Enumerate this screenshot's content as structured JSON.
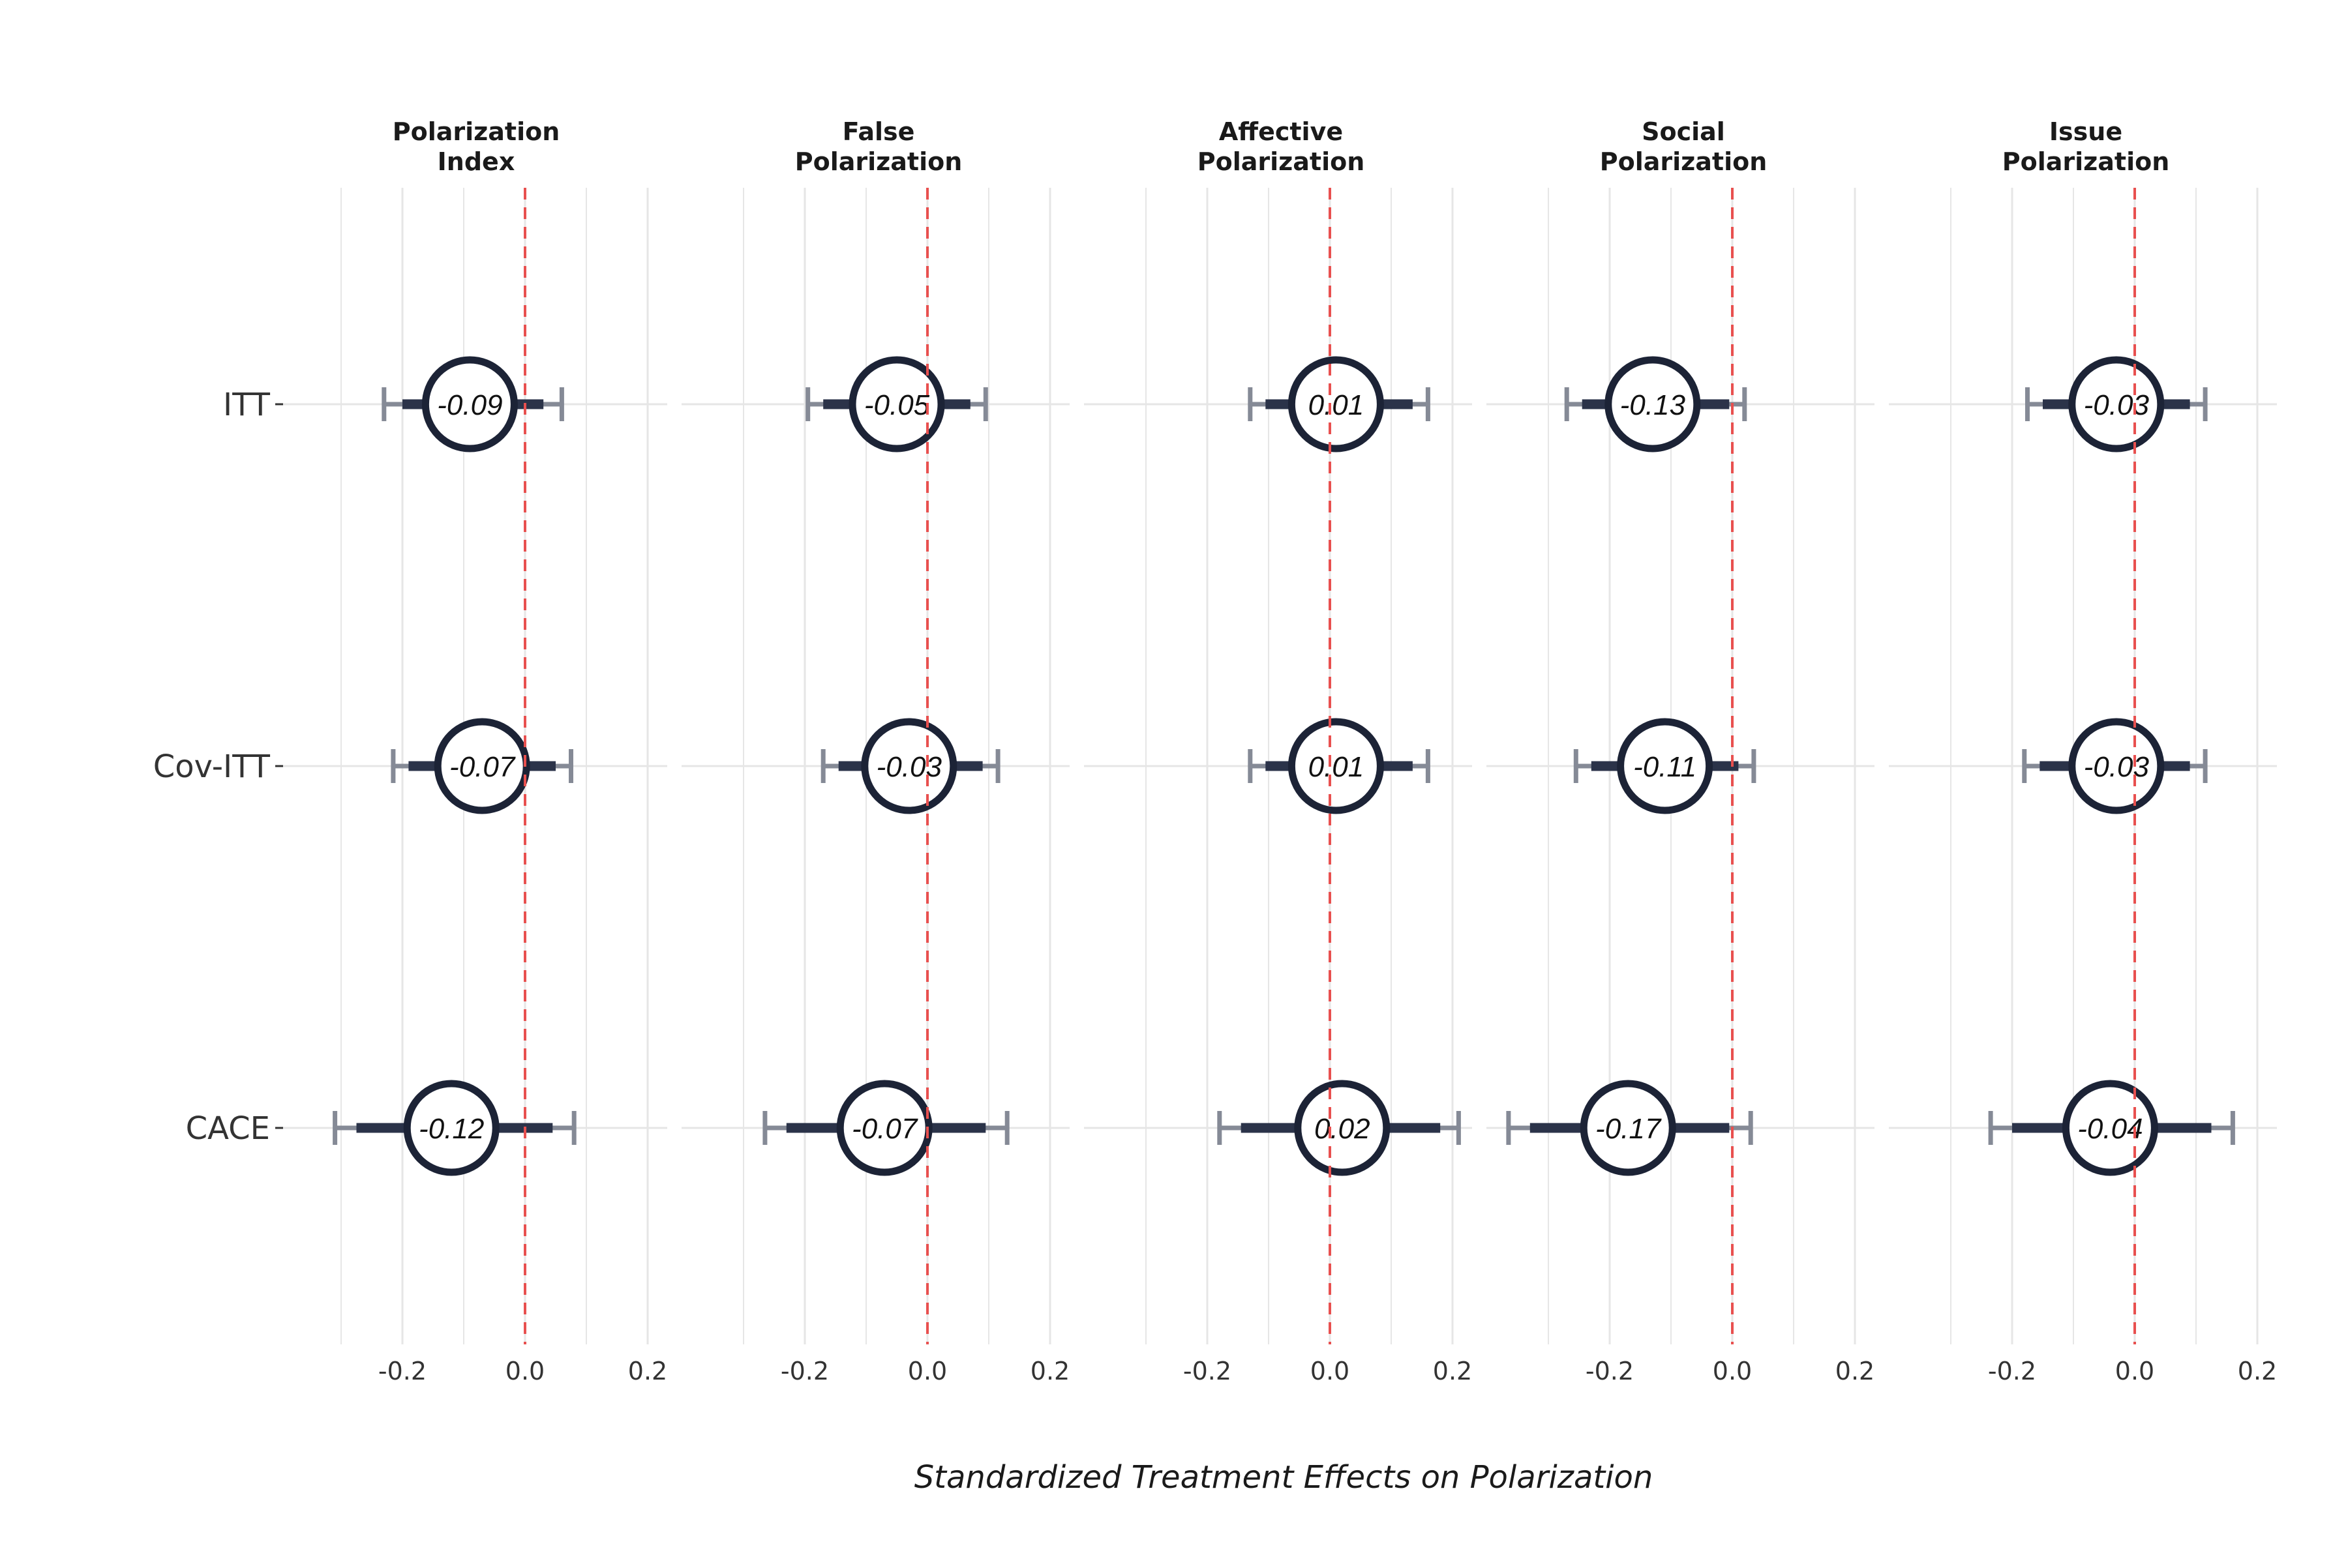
{
  "chart_data": {
    "type": "scatter",
    "subtype": "coefficient-plot-faceted",
    "xlabel": "Standardized Treatment Effects on Polarization",
    "x_ticks": [
      -0.2,
      0.0,
      0.2
    ],
    "x_tick_labels": [
      "-0.2",
      "0.0",
      "0.2"
    ],
    "reference_line": 0,
    "reference_line_color": "#e8504f",
    "grid": true,
    "rows": [
      "ITT",
      "Cov-ITT",
      "CACE"
    ],
    "colors": {
      "thick_bar": "#2b3349",
      "thin_bar": "#858a96",
      "circle_stroke": "#1c2336",
      "grid": "#e6e6e6"
    },
    "panels": [
      {
        "title_lines": [
          "Polarization",
          "Index"
        ],
        "estimates": [
          {
            "row": "ITT",
            "estimate": -0.09,
            "label": "-0.09",
            "ci90": [
              -0.2,
              0.03
            ],
            "ci95": [
              -0.23,
              0.06
            ]
          },
          {
            "row": "Cov-ITT",
            "estimate": -0.07,
            "label": "-0.07",
            "ci90": [
              -0.19,
              0.05
            ],
            "ci95": [
              -0.215,
              0.075
            ]
          },
          {
            "row": "CACE",
            "estimate": -0.12,
            "label": "-0.12",
            "ci90": [
              -0.275,
              0.045
            ],
            "ci95": [
              -0.31,
              0.08
            ]
          }
        ]
      },
      {
        "title_lines": [
          "False",
          "Polarization"
        ],
        "estimates": [
          {
            "row": "ITT",
            "estimate": -0.05,
            "label": "-0.05",
            "ci90": [
              -0.17,
              0.07
            ],
            "ci95": [
              -0.195,
              0.095
            ]
          },
          {
            "row": "Cov-ITT",
            "estimate": -0.03,
            "label": "-0.03",
            "ci90": [
              -0.145,
              0.09
            ],
            "ci95": [
              -0.17,
              0.115
            ]
          },
          {
            "row": "CACE",
            "estimate": -0.07,
            "label": "-0.07",
            "ci90": [
              -0.23,
              0.095
            ],
            "ci95": [
              -0.265,
              0.13
            ]
          }
        ]
      },
      {
        "title_lines": [
          "Affective",
          "Polarization"
        ],
        "estimates": [
          {
            "row": "ITT",
            "estimate": 0.01,
            "label": "0.01",
            "ci90": [
              -0.105,
              0.135
            ],
            "ci95": [
              -0.13,
              0.16
            ]
          },
          {
            "row": "Cov-ITT",
            "estimate": 0.01,
            "label": "0.01",
            "ci90": [
              -0.105,
              0.135
            ],
            "ci95": [
              -0.13,
              0.16
            ]
          },
          {
            "row": "CACE",
            "estimate": 0.02,
            "label": "0.02",
            "ci90": [
              -0.145,
              0.18
            ],
            "ci95": [
              -0.18,
              0.21
            ]
          }
        ]
      },
      {
        "title_lines": [
          "Social",
          "Polarization"
        ],
        "estimates": [
          {
            "row": "ITT",
            "estimate": -0.13,
            "label": "-0.13",
            "ci90": [
              -0.245,
              -0.005
            ],
            "ci95": [
              -0.27,
              0.02
            ]
          },
          {
            "row": "Cov-ITT",
            "estimate": -0.11,
            "label": "-0.11",
            "ci90": [
              -0.23,
              0.01
            ],
            "ci95": [
              -0.255,
              0.035
            ]
          },
          {
            "row": "CACE",
            "estimate": -0.17,
            "label": "-0.17",
            "ci90": [
              -0.33,
              -0.005
            ],
            "ci95": [
              -0.365,
              0.03
            ]
          }
        ]
      },
      {
        "title_lines": [
          "Issue",
          "Polarization"
        ],
        "estimates": [
          {
            "row": "ITT",
            "estimate": -0.03,
            "label": "-0.03",
            "ci90": [
              -0.15,
              0.09
            ],
            "ci95": [
              -0.175,
              0.115
            ]
          },
          {
            "row": "Cov-ITT",
            "estimate": -0.03,
            "label": "-0.03",
            "ci90": [
              -0.155,
              0.09
            ],
            "ci95": [
              -0.18,
              0.115
            ]
          },
          {
            "row": "CACE",
            "estimate": -0.04,
            "label": "-0.04",
            "ci90": [
              -0.2,
              0.125
            ],
            "ci95": [
              -0.235,
              0.16
            ]
          }
        ]
      }
    ]
  }
}
